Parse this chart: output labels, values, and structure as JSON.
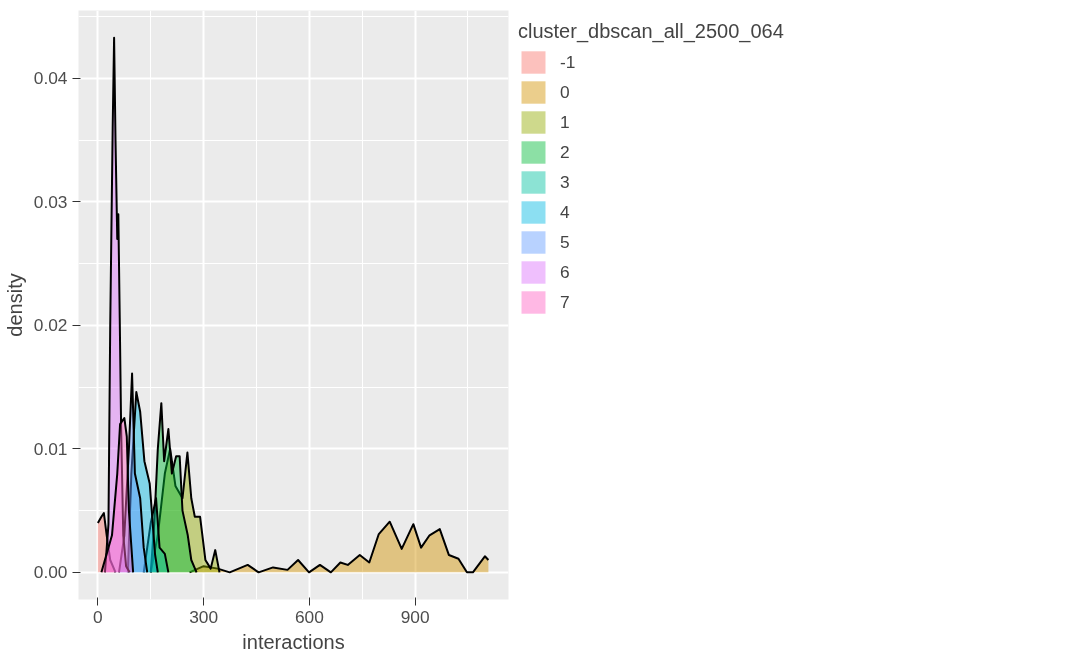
{
  "chart_data": {
    "type": "area",
    "xlabel": "interactions",
    "ylabel": "density",
    "legend_title": "cluster_dbscan_all_2500_064",
    "legend": "right",
    "grid": true,
    "xlim": [
      -55,
      1165
    ],
    "ylim": [
      -0.0022,
      0.0455
    ],
    "xticks": [
      0,
      300,
      600,
      900
    ],
    "yticks": [
      {
        "value": 0,
        "label": "0.00"
      },
      {
        "value": 0.01,
        "label": "0.01"
      },
      {
        "value": 0.02,
        "label": "0.02"
      },
      {
        "value": 0.03,
        "label": "0.03"
      },
      {
        "value": 0.04,
        "label": "0.04"
      }
    ],
    "series": [
      {
        "name": "-1",
        "color": "#f8766d",
        "x": [
          0,
          10,
          17,
          25,
          35,
          50
        ],
        "values": [
          0.004,
          0.0045,
          0.0048,
          0.003,
          0.001,
          0
        ]
      },
      {
        "name": "0",
        "color": "#d39200",
        "x": [
          260,
          300,
          340,
          374,
          425,
          456,
          497,
          538,
          568,
          599,
          630,
          661,
          688,
          709,
          743,
          770,
          797,
          828,
          862,
          895,
          917,
          941,
          970,
          996,
          1023,
          1047,
          1064,
          1098,
          1108
        ],
        "values": [
          0,
          0.0005,
          0.0003,
          0,
          0.0006,
          0,
          0.0004,
          0.0002,
          0.001,
          0,
          0.0006,
          0,
          0.0008,
          0.0006,
          0.0014,
          0.0008,
          0.0031,
          0.0041,
          0.0019,
          0.0039,
          0.002,
          0.003,
          0.0035,
          0.0014,
          0.0011,
          0,
          0,
          0.0013,
          0.001
        ]
      },
      {
        "name": "1",
        "color": "#93aa00",
        "x": [
          150,
          170,
          190,
          205,
          220,
          240,
          254,
          265,
          275,
          290,
          305,
          320,
          333,
          345
        ],
        "values": [
          0,
          0.003,
          0.008,
          0.01,
          0.007,
          0.006,
          0.0097,
          0.006,
          0.0045,
          0.0045,
          0.001,
          0.0003,
          0.0018,
          0
        ]
      },
      {
        "name": "2",
        "color": "#00ba38",
        "x": [
          150,
          160,
          170,
          180,
          188,
          200,
          210,
          222,
          232,
          240,
          255,
          265,
          280
        ],
        "values": [
          0,
          0.004,
          0.01,
          0.0137,
          0.009,
          0.0116,
          0.008,
          0.0094,
          0.0094,
          0.005,
          0.003,
          0.001,
          0
        ]
      },
      {
        "name": "3",
        "color": "#00c19f",
        "x": [
          130,
          150,
          165,
          175,
          190,
          200
        ],
        "values": [
          0,
          0.004,
          0.006,
          0.002,
          0.0015,
          0
        ]
      },
      {
        "name": "4",
        "color": "#00b9e3",
        "x": [
          85,
          95,
          109,
          120,
          132,
          147,
          162,
          170
        ],
        "values": [
          0,
          0.008,
          0.0146,
          0.013,
          0.009,
          0.0072,
          0.0015,
          0
        ]
      },
      {
        "name": "5",
        "color": "#619cff",
        "x": [
          60,
          75,
          88,
          97,
          105,
          120,
          130,
          140
        ],
        "values": [
          0,
          0.003,
          0.01,
          0.0161,
          0.008,
          0.006,
          0.002,
          0
        ]
      },
      {
        "name": "6",
        "color": "#db72fb",
        "x": [
          20,
          30,
          35,
          42,
          46,
          50,
          55,
          58,
          62,
          66,
          72,
          80,
          90
        ],
        "values": [
          0,
          0.0039,
          0.02,
          0.036,
          0.0433,
          0.035,
          0.027,
          0.029,
          0.0206,
          0.0116,
          0.003,
          0.0005,
          0
        ]
      },
      {
        "name": "7",
        "color": "#ff61c3",
        "x": [
          10,
          30,
          40,
          55,
          63,
          75,
          82,
          88,
          100
        ],
        "values": [
          0,
          0.002,
          0.003,
          0.008,
          0.012,
          0.0125,
          0.011,
          0.005,
          0
        ]
      }
    ]
  }
}
